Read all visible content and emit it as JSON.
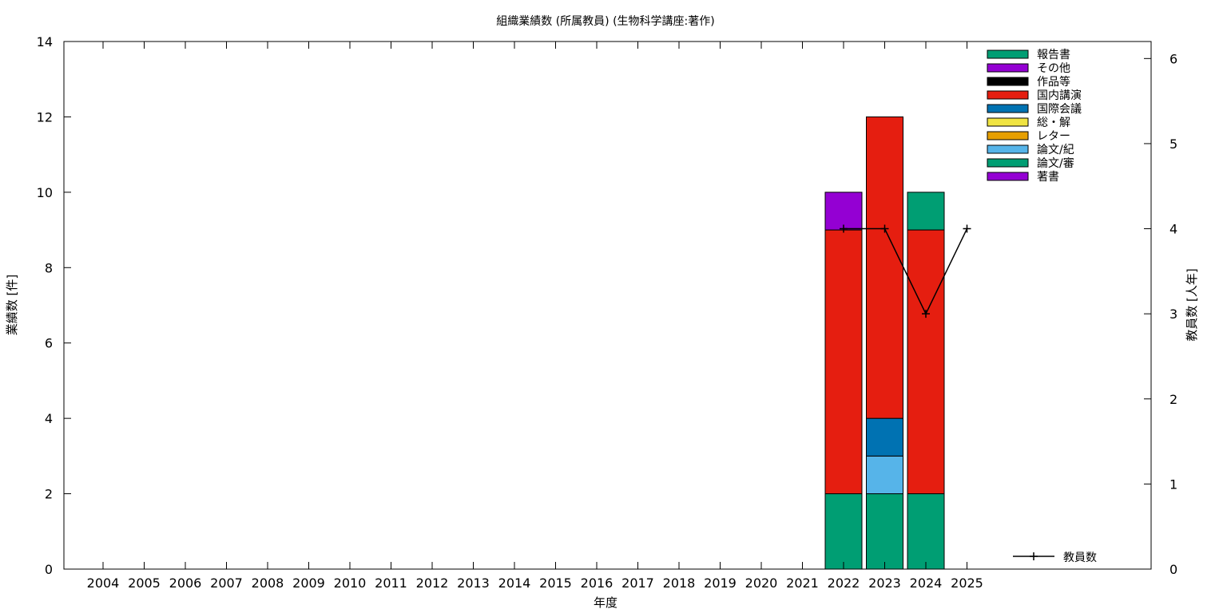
{
  "chart_data": {
    "type": "bar",
    "title": "組織業績数 (所属教員) (生物科学講座:著作)",
    "xlabel": "年度",
    "ylabel": "業績数 [件]",
    "y2label": "教員数 [人年]",
    "categories": [
      "2004",
      "2005",
      "2006",
      "2007",
      "2008",
      "2009",
      "2010",
      "2011",
      "2012",
      "2013",
      "2014",
      "2015",
      "2016",
      "2017",
      "2018",
      "2019",
      "2020",
      "2021",
      "2022",
      "2023",
      "2024",
      "2025"
    ],
    "ylim": [
      0,
      14
    ],
    "y2lim": [
      0,
      6.2
    ],
    "yticks": [
      0,
      2,
      4,
      6,
      8,
      10,
      12,
      14
    ],
    "y2ticks": [
      0,
      1,
      2,
      3,
      4,
      5,
      6
    ],
    "stacked": true,
    "legend_position": "top-right",
    "series": [
      {
        "name": "著書",
        "color": "#9400d3",
        "values": [
          0,
          0,
          0,
          0,
          0,
          0,
          0,
          0,
          0,
          0,
          0,
          0,
          0,
          0,
          0,
          0,
          0,
          0,
          1,
          0,
          0,
          0
        ]
      },
      {
        "name": "論文/審",
        "color": "#009e73",
        "values": [
          0,
          0,
          0,
          0,
          0,
          0,
          0,
          0,
          0,
          0,
          0,
          0,
          0,
          0,
          0,
          0,
          0,
          0,
          2,
          2,
          2,
          0
        ]
      },
      {
        "name": "論文/紀",
        "color": "#56b4e9",
        "values": [
          0,
          0,
          0,
          0,
          0,
          0,
          0,
          0,
          0,
          0,
          0,
          0,
          0,
          0,
          0,
          0,
          0,
          0,
          0,
          1,
          0,
          0
        ]
      },
      {
        "name": "レター",
        "color": "#e69f00",
        "values": [
          0,
          0,
          0,
          0,
          0,
          0,
          0,
          0,
          0,
          0,
          0,
          0,
          0,
          0,
          0,
          0,
          0,
          0,
          0,
          0,
          0,
          0
        ]
      },
      {
        "name": "総・解",
        "color": "#f0e442",
        "values": [
          0,
          0,
          0,
          0,
          0,
          0,
          0,
          0,
          0,
          0,
          0,
          0,
          0,
          0,
          0,
          0,
          0,
          0,
          0,
          0,
          0,
          0
        ]
      },
      {
        "name": "国際会議",
        "color": "#0072b2",
        "values": [
          0,
          0,
          0,
          0,
          0,
          0,
          0,
          0,
          0,
          0,
          0,
          0,
          0,
          0,
          0,
          0,
          0,
          0,
          0,
          1,
          0,
          0
        ]
      },
      {
        "name": "国内講演",
        "color": "#e51e10",
        "values": [
          0,
          0,
          0,
          0,
          0,
          0,
          0,
          0,
          0,
          0,
          0,
          0,
          0,
          0,
          0,
          0,
          0,
          0,
          7,
          8,
          7,
          0
        ]
      },
      {
        "name": "作品等",
        "color": "#000000",
        "values": [
          0,
          0,
          0,
          0,
          0,
          0,
          0,
          0,
          0,
          0,
          0,
          0,
          0,
          0,
          0,
          0,
          0,
          0,
          0,
          0,
          0,
          0
        ]
      },
      {
        "name": "その他",
        "color": "#9400d3",
        "values": [
          0,
          0,
          0,
          0,
          0,
          0,
          0,
          0,
          0,
          0,
          0,
          0,
          0,
          0,
          0,
          0,
          0,
          0,
          0,
          0,
          0,
          0
        ]
      },
      {
        "name": "報告書",
        "color": "#009e73",
        "values": [
          0,
          0,
          0,
          0,
          0,
          0,
          0,
          0,
          0,
          0,
          0,
          0,
          0,
          0,
          0,
          0,
          0,
          0,
          0,
          0,
          1,
          0
        ]
      }
    ],
    "stack_order": [
      "論文/審",
      "論文/紀",
      "国際会議",
      "国内講演",
      "報告書",
      "著書"
    ],
    "legend_order": [
      "報告書",
      "その他",
      "作品等",
      "国内講演",
      "国際会議",
      "総・解",
      "レター",
      "論文/紀",
      "論文/審",
      "著書"
    ],
    "line_series": {
      "name": "教員数",
      "color": "#000000",
      "axis": "y2",
      "x": [
        "2022",
        "2023",
        "2024",
        "2025"
      ],
      "values": [
        4,
        4,
        3,
        4
      ]
    }
  }
}
